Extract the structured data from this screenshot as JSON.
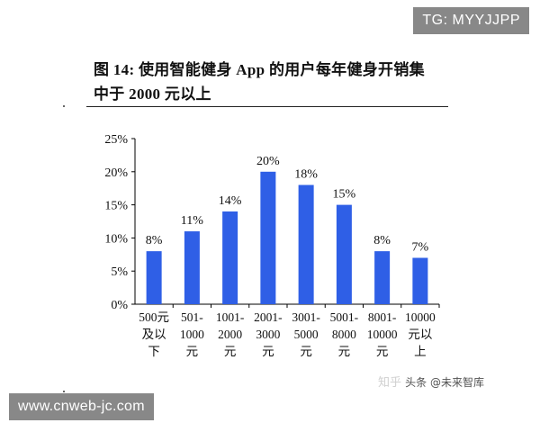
{
  "figure": {
    "title_line1": "图 14:  使用智能健身  App 的用户每年健身开销集",
    "title_line2": "中于 2000 元以上"
  },
  "watermarks": {
    "top_right": "TG: MYYJJPP",
    "bottom_left": "www.cnweb-jc.com",
    "zhihu_prefix": "知乎 ",
    "zhihu_handle": "头条 @未来智库"
  },
  "colors": {
    "bar": "#2f5fe6",
    "axis": "#000000",
    "text": "#111111"
  },
  "chart_data": {
    "type": "bar",
    "categories": [
      [
        "500元",
        "及以",
        "下"
      ],
      [
        "501-",
        "1000",
        "元"
      ],
      [
        "1001-",
        "2000",
        "元"
      ],
      [
        "2001-",
        "3000",
        "元"
      ],
      [
        "3001-",
        "5000",
        "元"
      ],
      [
        "5001-",
        "8000",
        "元"
      ],
      [
        "8001-",
        "10000",
        "元"
      ],
      [
        "10000",
        "元以",
        "上"
      ]
    ],
    "values": [
      8,
      11,
      14,
      20,
      18,
      15,
      8,
      7
    ],
    "data_labels": [
      "8%",
      "11%",
      "14%",
      "20%",
      "18%",
      "15%",
      "8%",
      "7%"
    ],
    "y_ticks": [
      0,
      5,
      10,
      15,
      20,
      25
    ],
    "y_tick_labels": [
      "0%",
      "5%",
      "10%",
      "15%",
      "20%",
      "25%"
    ],
    "ylim": [
      0,
      25
    ],
    "grid": false,
    "legend": "none"
  }
}
